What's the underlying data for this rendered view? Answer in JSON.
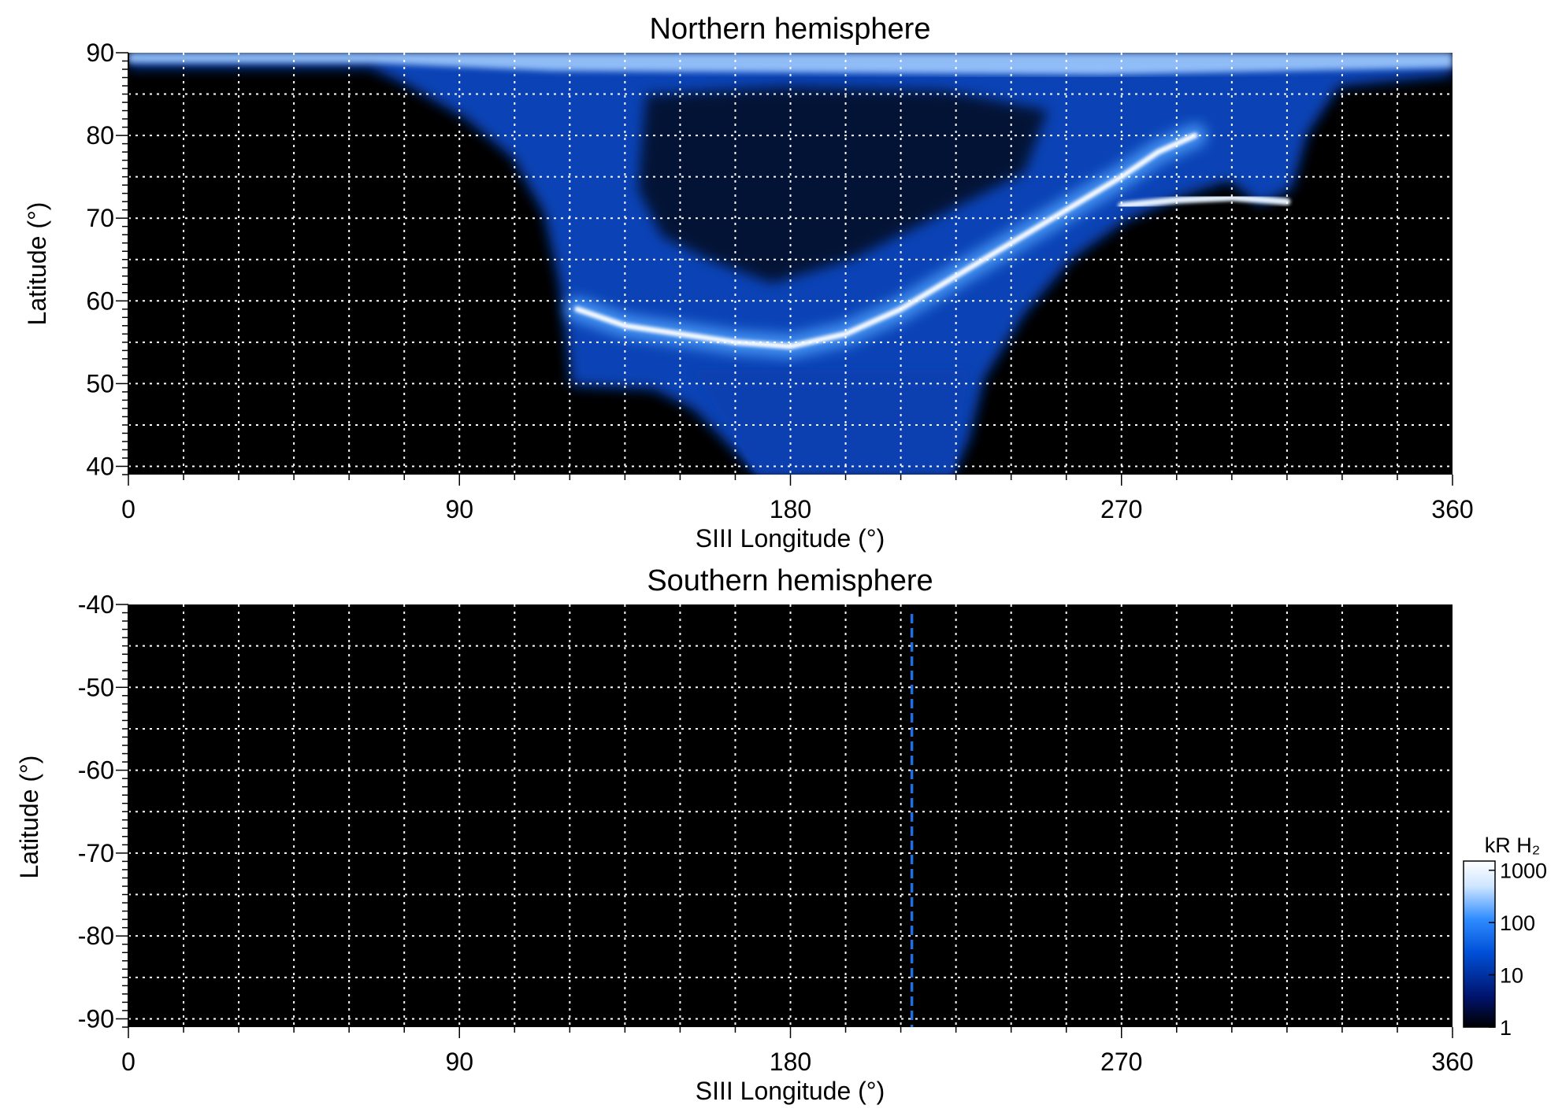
{
  "chart_data": [
    {
      "type": "heatmap",
      "title": "Northern hemisphere",
      "xlabel": "SIII Longitude (°)",
      "ylabel": "Latitude (°)",
      "xlim": [
        0,
        360
      ],
      "ylim": [
        39,
        90
      ],
      "xticks": [
        0,
        90,
        180,
        270,
        360
      ],
      "yticks": [
        40,
        50,
        60,
        70,
        80,
        90
      ],
      "grid": true,
      "background": "#000000",
      "features": {
        "main_oval": [
          [
            122,
            59
          ],
          [
            135,
            57
          ],
          [
            150,
            56
          ],
          [
            165,
            55
          ],
          [
            180,
            54.5
          ],
          [
            195,
            56
          ],
          [
            210,
            59
          ],
          [
            225,
            63
          ],
          [
            240,
            67
          ],
          [
            255,
            71
          ],
          [
            270,
            75
          ],
          [
            280,
            78
          ],
          [
            290,
            80
          ]
        ],
        "arc_segment": [
          [
            270,
            71.5
          ],
          [
            285,
            72.2
          ],
          [
            300,
            72.5
          ],
          [
            315,
            72
          ]
        ],
        "polar_cap_boundary": [
          [
            0,
            88.5
          ],
          [
            40,
            88.5
          ],
          [
            60,
            87.5
          ],
          [
            80,
            84
          ],
          [
            95,
            81
          ],
          [
            110,
            76
          ],
          [
            118,
            70
          ],
          [
            122,
            62
          ],
          [
            124,
            52
          ],
          [
            135,
            49.5
          ],
          [
            150,
            48
          ],
          [
            170,
            43
          ],
          [
            180,
            40
          ]
        ]
      }
    },
    {
      "type": "heatmap",
      "title": "Southern hemisphere",
      "xlabel": "SIII Longitude (°)",
      "ylabel": "Latitude (°)",
      "xlim": [
        0,
        360
      ],
      "ylim": [
        -91,
        -40
      ],
      "xticks": [
        0,
        90,
        180,
        270,
        360
      ],
      "yticks": [
        -40,
        -50,
        -60,
        -70,
        -80,
        -90
      ],
      "grid": true,
      "background": "#000000",
      "features": {
        "dashed_line_longitude": 213
      }
    }
  ],
  "colorbar": {
    "label": "kR H₂",
    "scale": "log",
    "range": [
      1,
      1500
    ],
    "ticks": [
      "1",
      "10",
      "100",
      "1000"
    ],
    "colors": [
      "#000000",
      "#00136b",
      "#0050d8",
      "#2f8cff",
      "#cfe6ff",
      "#ffffff"
    ]
  }
}
